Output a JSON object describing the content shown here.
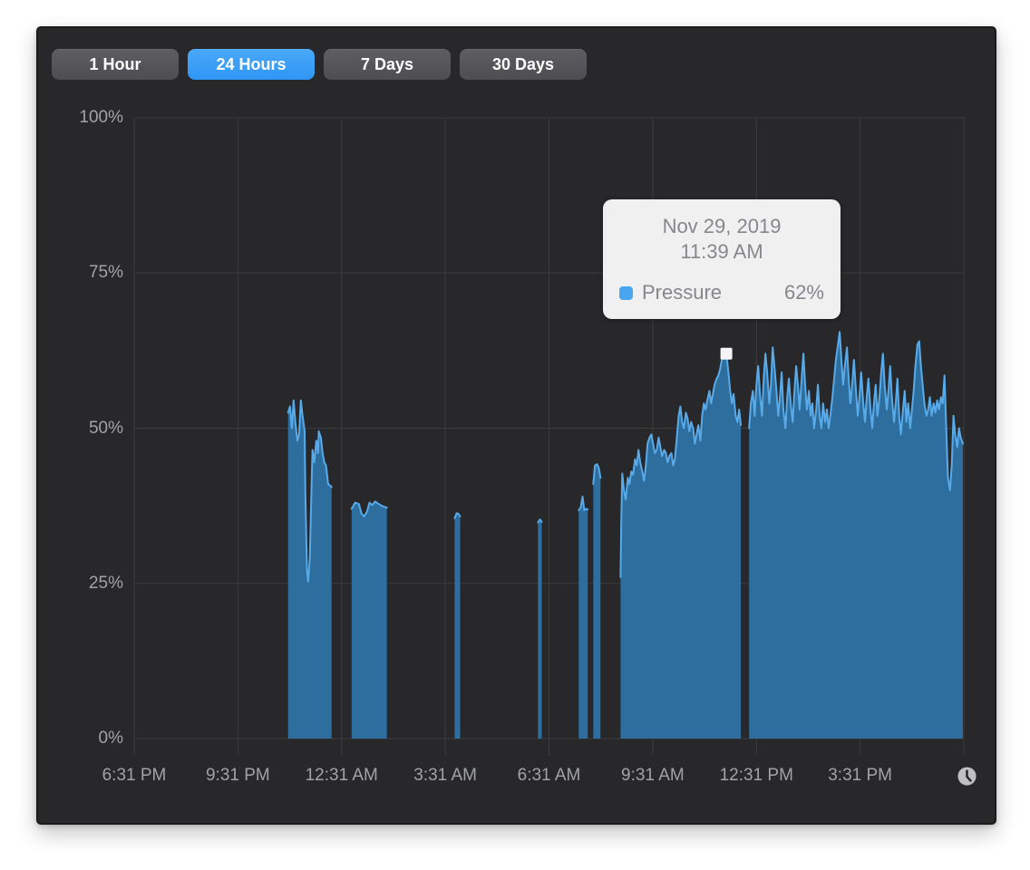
{
  "colors": {
    "page_bg": "#ffffff",
    "panel_bg": "#28282a",
    "panel_border": "#1b1b1c",
    "button_bg_top": "#5e5e62",
    "button_bg_bottom": "#4e4e52",
    "button_selected_top": "#4aa9f8",
    "button_selected_bottom": "#2e96f4",
    "button_text": "#ffffff",
    "tooltip_bg": "#f1f0f1",
    "tooltip_text": "#86868b",
    "swatch": "#47a6ef",
    "clock": "#c0c0c4"
  },
  "toolbar": {
    "buttons": [
      {
        "label": "1 Hour",
        "selected": false
      },
      {
        "label": "24 Hours",
        "selected": true
      },
      {
        "label": "7 Days",
        "selected": false
      },
      {
        "label": "30 Days",
        "selected": false
      }
    ]
  },
  "tooltip": {
    "date": "Nov 29, 2019",
    "time": "11:39 AM",
    "series_label": "Pressure",
    "value": "62%"
  },
  "icons": {
    "footer": "clock",
    "tooltip_swatch": "series-color-chip"
  },
  "chart_data": {
    "type": "area",
    "series_name": "Pressure",
    "grid": true,
    "legend": false,
    "x_axis": {
      "unit": "time",
      "range_hours": [
        0,
        24
      ],
      "start_label_time": "6:31 PM",
      "tick_hours": [
        0,
        3,
        6,
        9,
        12,
        15,
        18,
        21
      ],
      "tick_labels": [
        "6:31 PM",
        "9:31 PM",
        "12:31 AM",
        "3:31 AM",
        "6:31 AM",
        "9:31 AM",
        "12:31 PM",
        "3:31 PM"
      ],
      "grid_hours": [
        0,
        3,
        6,
        9,
        12,
        15,
        18,
        21,
        24
      ]
    },
    "y_axis": {
      "range": [
        0,
        100
      ],
      "tick_values": [
        100,
        75,
        50,
        25,
        0
      ],
      "tick_labels": [
        "100%",
        "75%",
        "50%",
        "25%",
        "0%"
      ]
    },
    "colors": {
      "area_fill": "#2d6e9e",
      "line": "#58aae9",
      "grid": "#3c3c3f",
      "axis_text": "#a2a3a7",
      "marker": "#f5f5f7"
    },
    "marker": {
      "hour": 17.13,
      "value": 62,
      "time_label": "11:39 AM"
    },
    "segments": [
      {
        "points": [
          [
            4.45,
            52.5
          ],
          [
            4.51,
            53.5
          ],
          [
            4.56,
            50
          ],
          [
            4.61,
            54.5
          ],
          [
            4.66,
            51
          ],
          [
            4.72,
            48
          ],
          [
            4.77,
            49
          ],
          [
            4.82,
            54.5
          ],
          [
            4.87,
            52
          ],
          [
            4.93,
            49.5
          ],
          [
            4.95,
            40
          ],
          [
            5.0,
            27
          ],
          [
            5.03,
            25.3
          ],
          [
            5.08,
            29
          ],
          [
            5.14,
            43
          ],
          [
            5.16,
            46.5
          ],
          [
            5.21,
            44.5
          ],
          [
            5.27,
            48
          ],
          [
            5.32,
            46
          ],
          [
            5.34,
            49.5
          ],
          [
            5.4,
            48.5
          ],
          [
            5.45,
            46
          ],
          [
            5.5,
            44.5
          ],
          [
            5.55,
            44
          ],
          [
            5.61,
            41
          ],
          [
            5.66,
            40.8
          ],
          [
            5.71,
            40.5
          ]
        ]
      },
      {
        "points": [
          [
            6.29,
            37
          ],
          [
            6.39,
            38
          ],
          [
            6.5,
            37.8
          ],
          [
            6.58,
            36.2
          ],
          [
            6.65,
            35.8
          ],
          [
            6.73,
            36.5
          ],
          [
            6.81,
            38
          ],
          [
            6.89,
            37.6
          ],
          [
            6.97,
            38.2
          ],
          [
            7.05,
            37.9
          ],
          [
            7.13,
            37.6
          ],
          [
            7.2,
            37.4
          ],
          [
            7.31,
            37.2
          ]
        ]
      },
      {
        "points": [
          [
            9.27,
            35.5
          ],
          [
            9.33,
            36.3
          ],
          [
            9.38,
            36.2
          ],
          [
            9.43,
            35.8
          ]
        ]
      },
      {
        "points": [
          [
            11.68,
            34.8
          ],
          [
            11.74,
            35.3
          ],
          [
            11.79,
            34.9
          ]
        ]
      },
      {
        "points": [
          [
            12.86,
            36.8
          ],
          [
            12.92,
            37.3
          ],
          [
            12.97,
            39
          ],
          [
            13.02,
            36.8
          ],
          [
            13.07,
            37
          ],
          [
            13.12,
            36.9
          ]
        ]
      },
      {
        "points": [
          [
            13.28,
            41
          ],
          [
            13.33,
            44
          ],
          [
            13.39,
            44.2
          ],
          [
            13.44,
            43.6
          ],
          [
            13.49,
            42
          ]
        ]
      },
      {
        "points": [
          [
            14.07,
            26
          ],
          [
            14.09,
            35
          ],
          [
            14.12,
            42.7
          ],
          [
            14.17,
            40
          ],
          [
            14.22,
            38.5
          ],
          [
            14.28,
            42
          ],
          [
            14.33,
            41
          ],
          [
            14.38,
            43
          ],
          [
            14.43,
            42.5
          ],
          [
            14.49,
            45
          ],
          [
            14.54,
            44
          ],
          [
            14.59,
            46.5
          ],
          [
            14.64,
            44.5
          ],
          [
            14.7,
            43
          ],
          [
            14.75,
            41.5
          ],
          [
            14.8,
            44
          ],
          [
            14.85,
            47.5
          ],
          [
            14.91,
            48.5
          ],
          [
            14.96,
            49
          ],
          [
            15.01,
            47.5
          ],
          [
            15.06,
            46
          ],
          [
            15.12,
            46.5
          ],
          [
            15.17,
            48.5
          ],
          [
            15.22,
            47
          ],
          [
            15.27,
            45.5
          ],
          [
            15.33,
            46.5
          ],
          [
            15.38,
            46
          ],
          [
            15.43,
            44.5
          ],
          [
            15.48,
            45.5
          ],
          [
            15.54,
            46
          ],
          [
            15.59,
            44
          ],
          [
            15.64,
            45
          ],
          [
            15.69,
            48
          ],
          [
            15.75,
            52
          ],
          [
            15.8,
            53.5
          ],
          [
            15.85,
            51
          ],
          [
            15.9,
            50
          ],
          [
            15.96,
            52.5
          ],
          [
            16.01,
            51.5
          ],
          [
            16.06,
            49.5
          ],
          [
            16.11,
            51
          ],
          [
            16.17,
            50
          ],
          [
            16.22,
            47.5
          ],
          [
            16.27,
            49
          ],
          [
            16.32,
            50.5
          ],
          [
            16.38,
            48
          ],
          [
            16.43,
            52
          ],
          [
            16.48,
            54
          ],
          [
            16.53,
            53
          ],
          [
            16.58,
            54.5
          ],
          [
            16.64,
            56
          ],
          [
            16.69,
            54
          ],
          [
            16.74,
            55.5
          ],
          [
            16.79,
            57
          ],
          [
            16.85,
            58
          ],
          [
            16.9,
            58.5
          ],
          [
            16.95,
            59.5
          ],
          [
            17.0,
            61
          ],
          [
            17.06,
            62.5
          ],
          [
            17.11,
            61.5
          ],
          [
            17.13,
            62
          ],
          [
            17.19,
            59
          ],
          [
            17.24,
            56
          ],
          [
            17.29,
            54
          ],
          [
            17.34,
            55.5
          ],
          [
            17.4,
            52
          ],
          [
            17.45,
            51
          ],
          [
            17.5,
            53
          ],
          [
            17.55,
            50.5
          ]
        ]
      },
      {
        "points": [
          [
            17.79,
            50
          ],
          [
            17.84,
            54
          ],
          [
            17.9,
            56
          ],
          [
            17.95,
            52
          ],
          [
            18.0,
            57
          ],
          [
            18.05,
            60
          ],
          [
            18.11,
            55
          ],
          [
            18.16,
            52
          ],
          [
            18.21,
            58
          ],
          [
            18.26,
            62
          ],
          [
            18.31,
            59
          ],
          [
            18.37,
            54
          ],
          [
            18.42,
            57
          ],
          [
            18.47,
            63
          ],
          [
            18.52,
            60
          ],
          [
            18.58,
            56
          ],
          [
            18.63,
            52
          ],
          [
            18.68,
            55
          ],
          [
            18.73,
            59
          ],
          [
            18.78,
            53
          ],
          [
            18.84,
            50
          ],
          [
            18.89,
            55
          ],
          [
            18.94,
            58
          ],
          [
            18.99,
            54
          ],
          [
            19.05,
            51
          ],
          [
            19.1,
            56
          ],
          [
            19.15,
            60
          ],
          [
            19.2,
            57
          ],
          [
            19.25,
            53
          ],
          [
            19.31,
            58
          ],
          [
            19.36,
            62
          ],
          [
            19.41,
            57
          ],
          [
            19.46,
            53
          ],
          [
            19.52,
            56
          ],
          [
            19.57,
            52
          ],
          [
            19.62,
            54
          ],
          [
            19.67,
            50
          ],
          [
            19.73,
            53
          ],
          [
            19.78,
            57
          ],
          [
            19.83,
            52
          ],
          [
            19.88,
            50
          ],
          [
            19.93,
            54
          ],
          [
            19.99,
            51
          ],
          [
            20.04,
            53
          ],
          [
            20.09,
            50
          ],
          [
            20.14,
            52
          ],
          [
            20.2,
            55
          ],
          [
            20.25,
            58
          ],
          [
            20.3,
            61
          ],
          [
            20.35,
            63
          ],
          [
            20.41,
            65.5
          ],
          [
            20.46,
            61
          ],
          [
            20.51,
            57
          ],
          [
            20.56,
            60
          ],
          [
            20.62,
            63
          ],
          [
            20.67,
            58
          ],
          [
            20.72,
            54
          ],
          [
            20.77,
            57
          ],
          [
            20.82,
            61
          ],
          [
            20.88,
            56
          ],
          [
            20.93,
            52
          ],
          [
            20.98,
            55
          ],
          [
            21.03,
            59
          ],
          [
            21.09,
            54
          ],
          [
            21.14,
            51
          ],
          [
            21.19,
            55
          ],
          [
            21.24,
            58
          ],
          [
            21.3,
            53
          ],
          [
            21.35,
            50
          ],
          [
            21.4,
            54
          ],
          [
            21.45,
            57
          ],
          [
            21.5,
            52
          ],
          [
            21.56,
            55
          ],
          [
            21.61,
            59
          ],
          [
            21.66,
            62
          ],
          [
            21.71,
            57
          ],
          [
            21.77,
            53
          ],
          [
            21.82,
            56
          ],
          [
            21.87,
            60
          ],
          [
            21.92,
            55
          ],
          [
            21.98,
            51
          ],
          [
            22.03,
            54
          ],
          [
            22.08,
            58
          ],
          [
            22.13,
            52
          ],
          [
            22.18,
            49
          ],
          [
            22.24,
            53
          ],
          [
            22.29,
            56
          ],
          [
            22.34,
            51
          ],
          [
            22.39,
            54
          ],
          [
            22.45,
            50
          ],
          [
            22.5,
            53
          ],
          [
            22.55,
            56
          ],
          [
            22.6,
            60
          ],
          [
            22.66,
            63.5
          ],
          [
            22.71,
            64
          ],
          [
            22.76,
            60
          ],
          [
            22.81,
            57
          ],
          [
            22.86,
            54
          ],
          [
            22.92,
            52
          ],
          [
            22.97,
            53
          ],
          [
            23.02,
            55
          ],
          [
            23.07,
            52
          ],
          [
            23.13,
            54
          ],
          [
            23.18,
            52.5
          ],
          [
            23.23,
            54.5
          ],
          [
            23.28,
            53
          ],
          [
            23.34,
            55
          ],
          [
            23.39,
            54
          ],
          [
            23.44,
            58.5
          ],
          [
            23.49,
            50
          ],
          [
            23.54,
            42
          ],
          [
            23.6,
            40
          ],
          [
            23.65,
            44
          ],
          [
            23.7,
            52
          ],
          [
            23.75,
            49
          ],
          [
            23.81,
            47
          ],
          [
            23.86,
            50
          ],
          [
            23.91,
            48.5
          ],
          [
            23.97,
            47.5
          ]
        ]
      }
    ]
  }
}
